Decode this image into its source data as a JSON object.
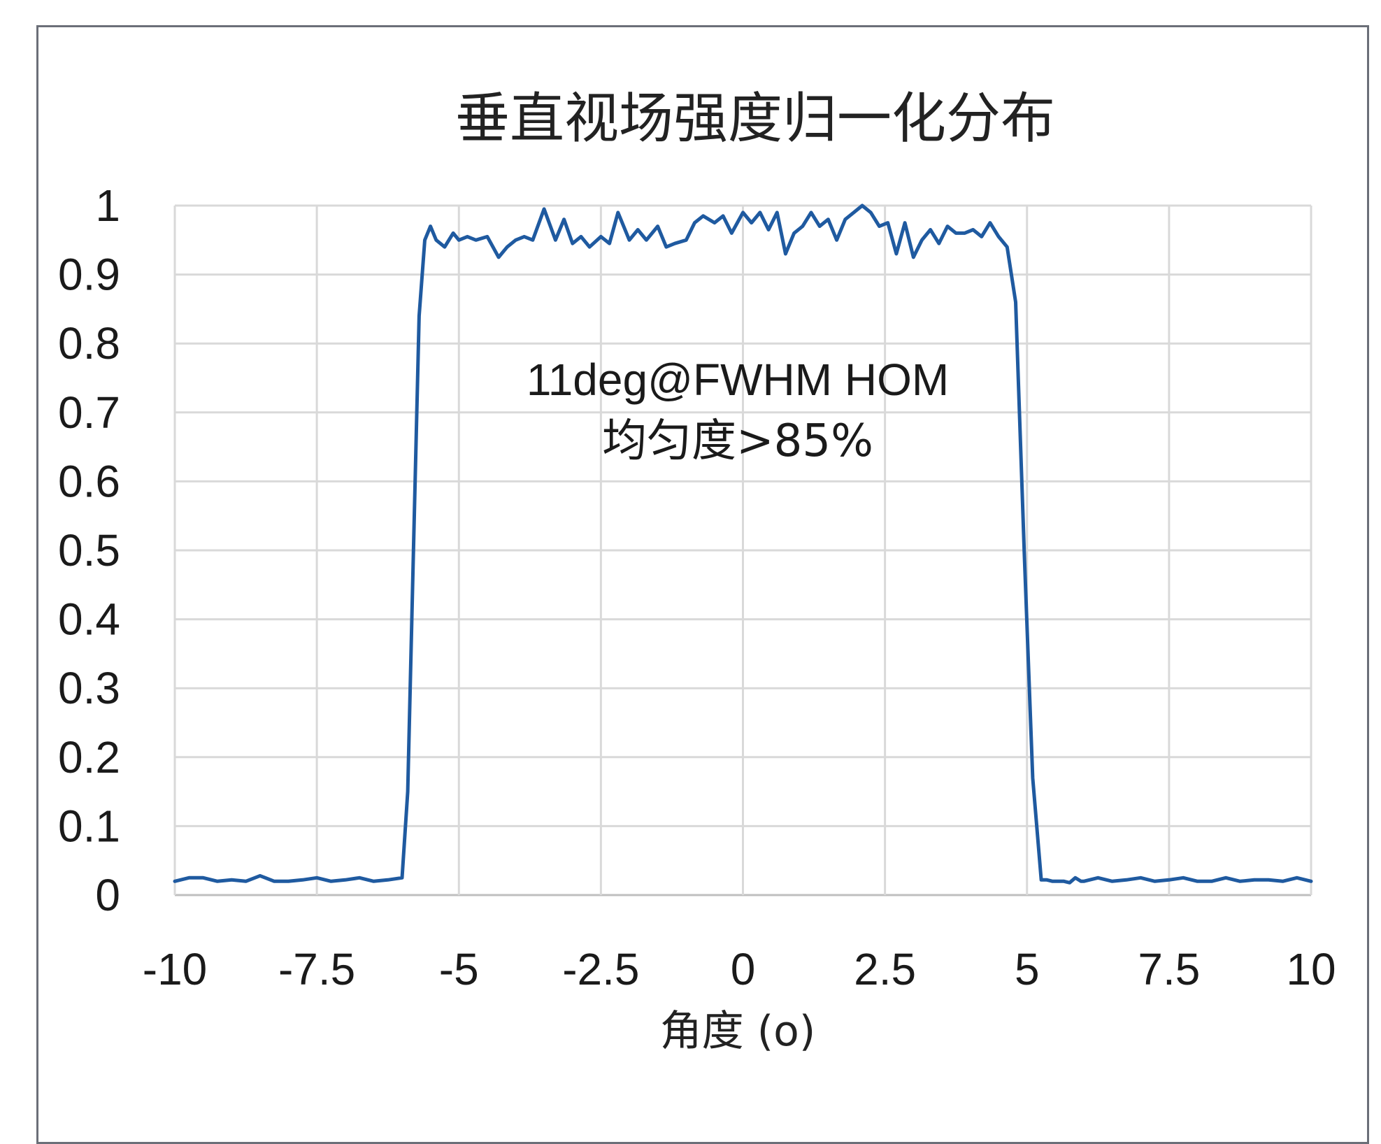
{
  "chart_data": {
    "type": "line",
    "title": "垂直视场强度归一化分布",
    "xlabel": "角度 (o)",
    "ylabel": "",
    "xlim": [
      -10,
      10
    ],
    "ylim": [
      0,
      1
    ],
    "x_ticks": [
      "-10",
      "-7.5",
      "-5",
      "-2.5",
      "0",
      "2.5",
      "5",
      "7.5",
      "10"
    ],
    "x_tick_values": [
      -10,
      -7.5,
      -5,
      -2.5,
      0,
      2.5,
      5,
      7.5,
      10
    ],
    "y_ticks": [
      "0",
      "0.1",
      "0.2",
      "0.3",
      "0.4",
      "0.5",
      "0.6",
      "0.7",
      "0.8",
      "0.9",
      "1"
    ],
    "y_tick_values": [
      0,
      0.1,
      0.2,
      0.3,
      0.4,
      0.5,
      0.6,
      0.7,
      0.8,
      0.9,
      1
    ],
    "grid": true,
    "legend": "none",
    "annotations": [
      "11deg@FWHM HOM",
      "均匀度>85%"
    ],
    "series": [
      {
        "color": "#1f5aa0",
        "x": [
          -10.0,
          -9.75,
          -9.5,
          -9.25,
          -9.0,
          -8.75,
          -8.5,
          -8.25,
          -8.0,
          -7.75,
          -7.5,
          -7.25,
          -7.0,
          -6.75,
          -6.5,
          -6.25,
          -6.0,
          -5.9,
          -5.8,
          -5.7,
          -5.6,
          -5.5,
          -5.4,
          -5.25,
          -5.1,
          -5.0,
          -4.85,
          -4.7,
          -4.5,
          -4.3,
          -4.15,
          -4.0,
          -3.85,
          -3.7,
          -3.5,
          -3.3,
          -3.15,
          -3.0,
          -2.85,
          -2.7,
          -2.5,
          -2.35,
          -2.2,
          -2.0,
          -1.85,
          -1.7,
          -1.5,
          -1.35,
          -1.2,
          -1.0,
          -0.85,
          -0.7,
          -0.5,
          -0.35,
          -0.2,
          0.0,
          0.15,
          0.3,
          0.45,
          0.6,
          0.75,
          0.9,
          1.05,
          1.2,
          1.35,
          1.5,
          1.65,
          1.8,
          1.95,
          2.1,
          2.25,
          2.4,
          2.55,
          2.7,
          2.85,
          3.0,
          3.15,
          3.3,
          3.45,
          3.6,
          3.75,
          3.9,
          4.05,
          4.2,
          4.35,
          4.5,
          4.65,
          4.8,
          4.95,
          5.1,
          5.25,
          5.35,
          5.45,
          5.55,
          5.65,
          5.75,
          5.85,
          5.95,
          6.0,
          6.25,
          6.5,
          6.75,
          7.0,
          7.25,
          7.5,
          7.75,
          8.0,
          8.25,
          8.5,
          8.75,
          9.0,
          9.25,
          9.5,
          9.75,
          10.0
        ],
        "y": [
          0.02,
          0.025,
          0.025,
          0.02,
          0.022,
          0.02,
          0.028,
          0.02,
          0.02,
          0.022,
          0.025,
          0.02,
          0.022,
          0.025,
          0.02,
          0.022,
          0.025,
          0.15,
          0.5,
          0.84,
          0.95,
          0.97,
          0.95,
          0.94,
          0.96,
          0.95,
          0.955,
          0.95,
          0.955,
          0.925,
          0.94,
          0.95,
          0.955,
          0.95,
          0.995,
          0.95,
          0.98,
          0.945,
          0.955,
          0.94,
          0.955,
          0.945,
          0.99,
          0.95,
          0.965,
          0.95,
          0.97,
          0.94,
          0.945,
          0.95,
          0.975,
          0.985,
          0.975,
          0.985,
          0.96,
          0.99,
          0.975,
          0.99,
          0.965,
          0.99,
          0.93,
          0.96,
          0.97,
          0.99,
          0.97,
          0.98,
          0.95,
          0.98,
          0.99,
          1.0,
          0.99,
          0.97,
          0.975,
          0.93,
          0.975,
          0.925,
          0.95,
          0.965,
          0.945,
          0.97,
          0.96,
          0.96,
          0.965,
          0.955,
          0.975,
          0.955,
          0.94,
          0.86,
          0.5,
          0.17,
          0.022,
          0.022,
          0.02,
          0.02,
          0.02,
          0.018,
          0.025,
          0.02,
          0.02,
          0.025,
          0.02,
          0.022,
          0.025,
          0.02,
          0.022,
          0.025,
          0.02,
          0.02,
          0.025,
          0.02,
          0.022,
          0.022,
          0.02,
          0.025,
          0.02
        ]
      }
    ]
  }
}
